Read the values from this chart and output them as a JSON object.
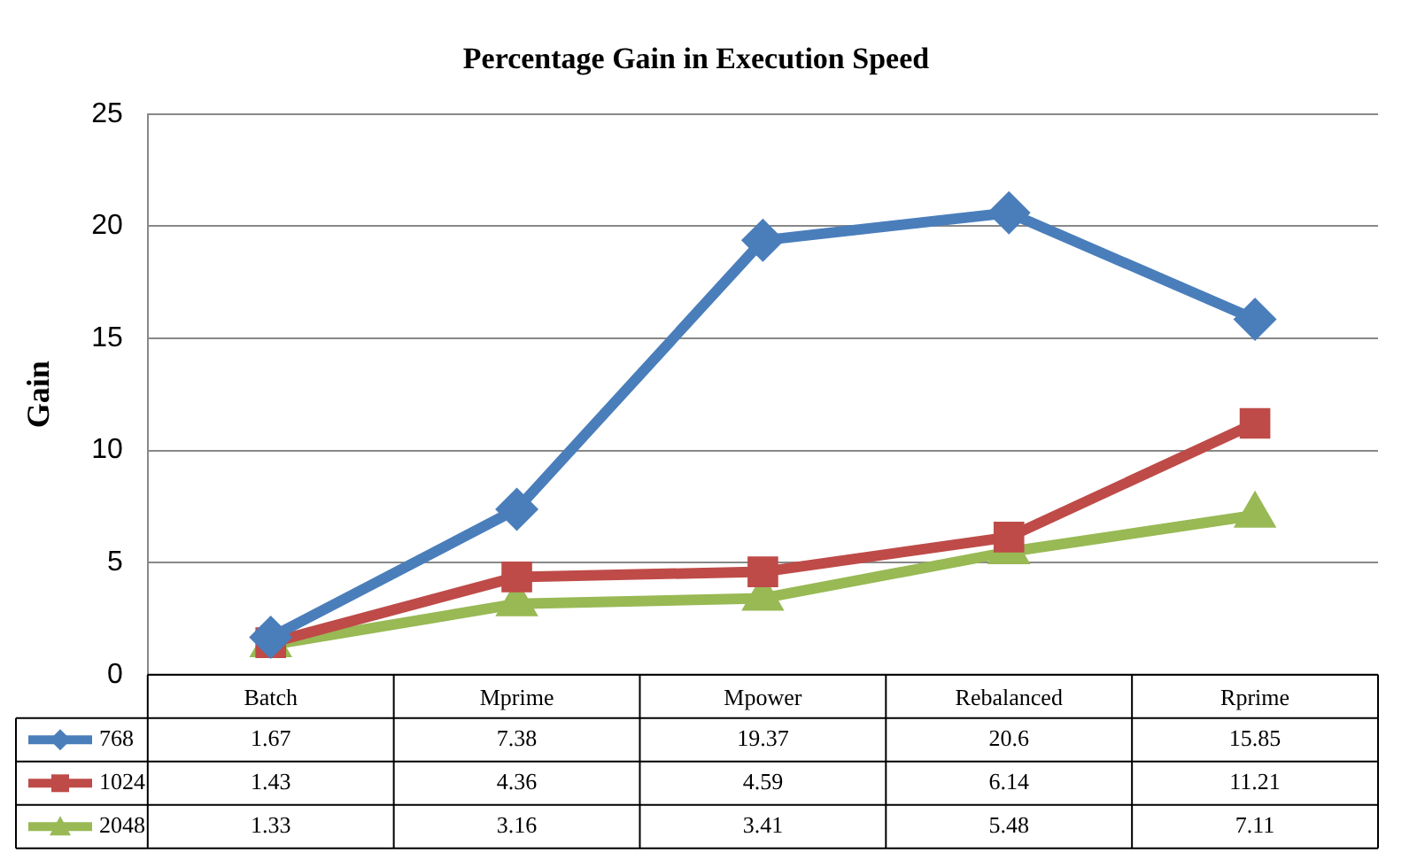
{
  "chart_data": {
    "type": "line",
    "title": "Percentage Gain in Execution Speed",
    "ylabel": "Gain",
    "categories": [
      "Batch",
      "Mprime",
      "Mpower",
      "Rebalanced",
      "Rprime"
    ],
    "series": [
      {
        "name": "768",
        "color": "#4a7ebb",
        "marker": "diamond",
        "values": [
          1.67,
          7.38,
          19.37,
          20.6,
          15.85
        ]
      },
      {
        "name": "1024",
        "color": "#be4b48",
        "marker": "square",
        "values": [
          1.43,
          4.36,
          4.59,
          6.14,
          11.21
        ]
      },
      {
        "name": "2048",
        "color": "#98b954",
        "marker": "triangle",
        "values": [
          1.33,
          3.16,
          3.41,
          5.48,
          7.11
        ]
      }
    ],
    "ylim": [
      0,
      25
    ],
    "yticks": [
      0,
      5,
      10,
      15,
      20,
      25
    ],
    "grid": "y",
    "legend": "bottom",
    "data_labels": true
  }
}
